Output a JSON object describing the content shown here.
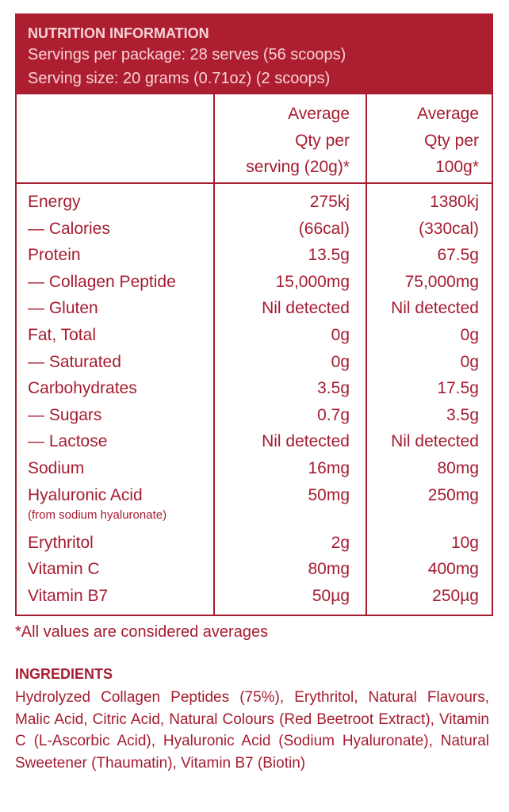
{
  "header": {
    "title": "NUTRITION INFORMATION",
    "lines": [
      "Servings per package: 28 serves (56 scoops)",
      "Serving size: 20 grams (0.71oz) (2 scoops)"
    ]
  },
  "table": {
    "columns": [
      [
        "Average",
        "Qty per",
        "serving (20g)*"
      ],
      [
        "Average",
        "Qty per",
        "100g*"
      ]
    ],
    "rows": [
      {
        "label": "Energy",
        "values": [
          "275kj",
          "1380kj"
        ]
      },
      {
        "label": "— Calories",
        "values": [
          "(66cal)",
          "(330cal)"
        ]
      },
      {
        "label": "Protein",
        "values": [
          "13.5g",
          "67.5g"
        ]
      },
      {
        "label": "— Collagen Peptide",
        "values": [
          "15,000mg",
          "75,000mg"
        ]
      },
      {
        "label": "— Gluten",
        "values": [
          "Nil detected",
          "Nil detected"
        ]
      },
      {
        "label": "Fat, Total",
        "values": [
          "0g",
          "0g"
        ]
      },
      {
        "label": "— Saturated",
        "values": [
          "0g",
          "0g"
        ]
      },
      {
        "label": "Carbohydrates",
        "values": [
          "3.5g",
          "17.5g"
        ]
      },
      {
        "label": "— Sugars",
        "values": [
          "0.7g",
          "3.5g"
        ]
      },
      {
        "label": "— Lactose",
        "values": [
          "Nil detected",
          "Nil detected"
        ]
      },
      {
        "label": "Sodium",
        "values": [
          "16mg",
          "80mg"
        ]
      },
      {
        "label": "Hyaluronic Acid",
        "note": "(from sodium hyaluronate)",
        "values": [
          "50mg",
          "250mg"
        ]
      },
      {
        "label": "Erythritol",
        "values": [
          "2g",
          "10g"
        ]
      },
      {
        "label": "Vitamin C",
        "values": [
          "80mg",
          "400mg"
        ]
      },
      {
        "label": "Vitamin B7",
        "values": [
          "50µg",
          "250µg"
        ]
      }
    ]
  },
  "footnote": "*All values are considered averages",
  "ingredients": {
    "title": "INGREDIENTS",
    "text": "Hydrolyzed Collagen Peptides (75%), Erythritol, Natural Flavours, Malic Acid, Citric Acid, Natural Colours (Red Beetroot Extract), Vitamin C (L-Ascorbic Acid), Hyaluronic Acid (Sodium Hyaluronate), Natural Sweetener (Thaumatin), Vitamin B7 (Biotin)"
  }
}
